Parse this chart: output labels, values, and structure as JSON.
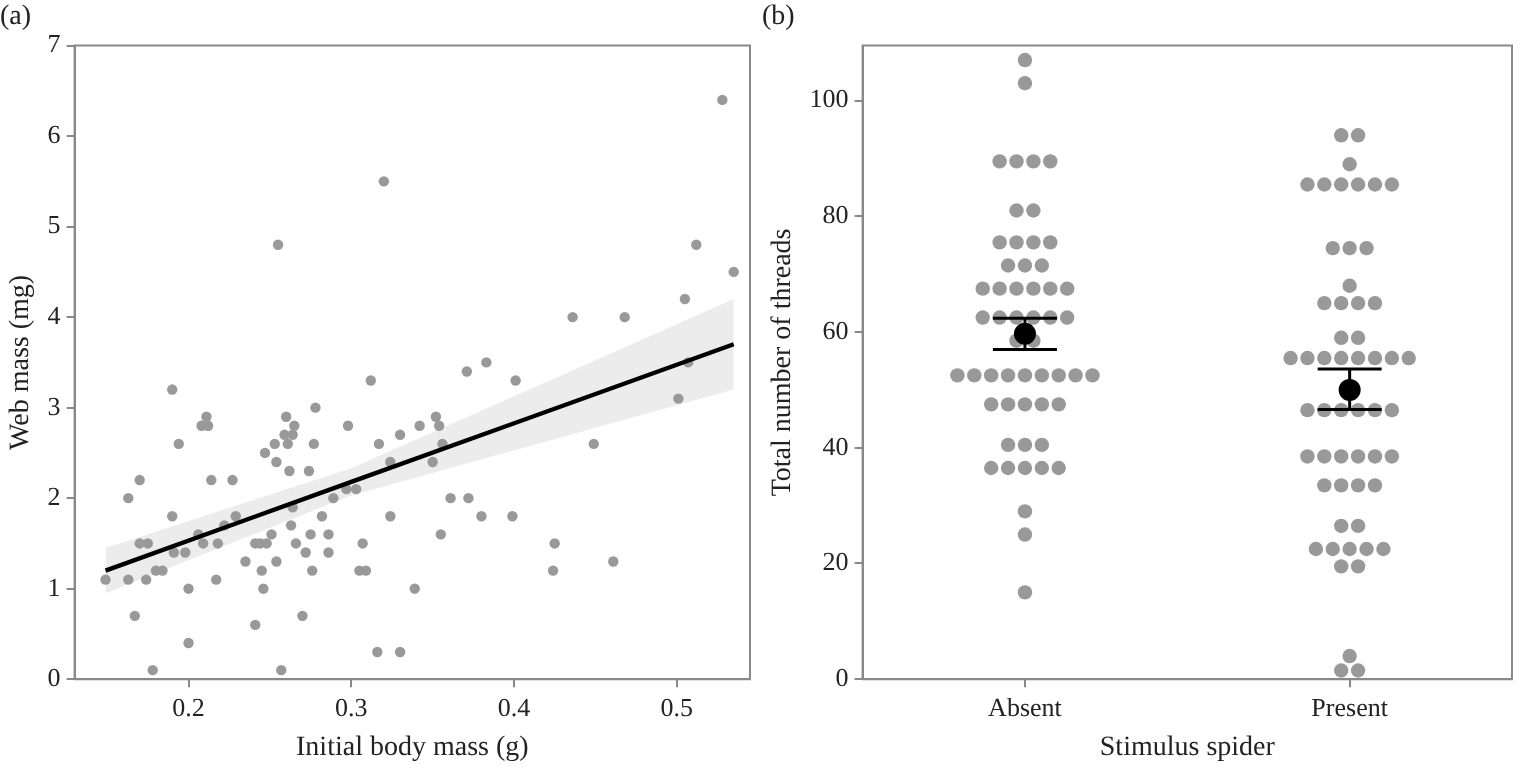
{
  "chart_data": [
    {
      "type": "scatter",
      "title": "(a)",
      "xlabel": "Initial body mass (g)",
      "ylabel": "Web mass (mg)",
      "xlim": [
        0.13,
        0.545
      ],
      "ylim": [
        0,
        7
      ],
      "xticks": [
        0.2,
        0.3,
        0.4,
        0.5
      ],
      "yticks": [
        0,
        1,
        2,
        3,
        4,
        5,
        6,
        7
      ],
      "grid": false,
      "legend": false,
      "marker": "circle",
      "series": [
        {
          "color": "#999999",
          "x": [
            0.149,
            0.163,
            0.163,
            0.167,
            0.17,
            0.17,
            0.175,
            0.174,
            0.178,
            0.18,
            0.184,
            0.19,
            0.19,
            0.191,
            0.194,
            0.198,
            0.2,
            0.2,
            0.206,
            0.209,
            0.208,
            0.211,
            0.212,
            0.214,
            0.217,
            0.218,
            0.222,
            0.227,
            0.229,
            0.235,
            0.241,
            0.241,
            0.244,
            0.245,
            0.246,
            0.247,
            0.248,
            0.251,
            0.253,
            0.254,
            0.254,
            0.257,
            0.259,
            0.26,
            0.261,
            0.262,
            0.263,
            0.264,
            0.264,
            0.265,
            0.266,
            0.27,
            0.272,
            0.274,
            0.275,
            0.276,
            0.277,
            0.278,
            0.282,
            0.286,
            0.286,
            0.289,
            0.298,
            0.297,
            0.303,
            0.305,
            0.307,
            0.309,
            0.312,
            0.316,
            0.317,
            0.324,
            0.324,
            0.33,
            0.33,
            0.339,
            0.35,
            0.342,
            0.352,
            0.354,
            0.355,
            0.356,
            0.361,
            0.371,
            0.372,
            0.38,
            0.383,
            0.399,
            0.401,
            0.424,
            0.425,
            0.449,
            0.461,
            0.501,
            0.507,
            0.255,
            0.32,
            0.528,
            0.512,
            0.535,
            0.505,
            0.436,
            0.468
          ],
          "values": [
            1.1,
            2.0,
            1.1,
            0.7,
            2.2,
            1.5,
            1.5,
            1.1,
            0.1,
            1.2,
            1.2,
            3.2,
            1.8,
            1.4,
            2.6,
            1.4,
            1.0,
            0.4,
            1.6,
            1.5,
            2.8,
            2.9,
            2.8,
            2.2,
            1.1,
            1.5,
            1.7,
            2.2,
            1.8,
            1.3,
            1.5,
            0.6,
            1.5,
            1.2,
            1.0,
            2.5,
            1.5,
            1.6,
            2.6,
            2.4,
            1.3,
            0.1,
            2.7,
            2.9,
            2.6,
            2.3,
            1.7,
            2.7,
            1.9,
            2.8,
            1.5,
            0.7,
            1.4,
            2.3,
            1.6,
            1.2,
            2.6,
            3.0,
            1.8,
            1.6,
            1.4,
            2.0,
            2.8,
            2.1,
            2.1,
            1.2,
            1.5,
            1.2,
            3.3,
            0.3,
            2.6,
            1.8,
            2.4,
            2.7,
            0.3,
            1.0,
            2.4,
            2.8,
            2.9,
            2.8,
            1.6,
            2.6,
            2.0,
            3.4,
            2.0,
            1.8,
            3.5,
            1.8,
            3.3,
            1.2,
            1.5,
            2.6,
            1.3,
            3.1,
            3.5,
            4.8,
            5.5,
            6.4,
            4.8,
            4.5,
            4.2,
            4.0,
            4.0
          ]
        },
        {
          "type": "line",
          "marker": "none",
          "color": "#000000",
          "x": [
            0.149,
            0.3,
            0.535
          ],
          "values": [
            1.2,
            2.18,
            3.7
          ],
          "lower": [
            0.95,
            2.03,
            3.2
          ],
          "upper": [
            1.45,
            2.33,
            4.2
          ]
        }
      ]
    },
    {
      "type": "scatter",
      "title": "(b)",
      "xlabel": "Stimulus spider",
      "ylabel": "Total number of threads",
      "categories": [
        "Absent",
        "Present"
      ],
      "ylim": [
        0,
        109.5
      ],
      "yticks": [
        0,
        20,
        40,
        60,
        80,
        100
      ],
      "grid": false,
      "legend": false,
      "marker": "circle",
      "series": [
        {
          "color": "#999999",
          "x": [
            "Absent",
            "Absent",
            "Absent",
            "Absent",
            "Absent",
            "Absent",
            "Absent",
            "Absent",
            "Absent",
            "Absent",
            "Absent",
            "Absent",
            "Absent",
            "Absent",
            "Absent",
            "Absent",
            "Absent",
            "Absent",
            "Absent",
            "Absent",
            "Absent",
            "Absent",
            "Absent",
            "Absent",
            "Absent",
            "Absent",
            "Absent",
            "Absent",
            "Absent",
            "Absent",
            "Absent",
            "Absent",
            "Absent",
            "Absent",
            "Absent",
            "Absent",
            "Absent",
            "Absent",
            "Absent",
            "Absent",
            "Absent",
            "Absent",
            "Absent",
            "Absent",
            "Absent",
            "Absent",
            "Absent",
            "Absent",
            "Absent",
            "Absent",
            "Absent",
            "Absent",
            "Absent",
            "Absent",
            "Present",
            "Present",
            "Present",
            "Present",
            "Present",
            "Present",
            "Present",
            "Present",
            "Present",
            "Present",
            "Present",
            "Present",
            "Present",
            "Present",
            "Present",
            "Present",
            "Present",
            "Present",
            "Present",
            "Present",
            "Present",
            "Present",
            "Present",
            "Present",
            "Present",
            "Present",
            "Present",
            "Present",
            "Present",
            "Present",
            "Present",
            "Present",
            "Present",
            "Present",
            "Present",
            "Present",
            "Present",
            "Present",
            "Present",
            "Present",
            "Present",
            "Present",
            "Present",
            "Present",
            "Present",
            "Present",
            "Present",
            "Present",
            "Present",
            "Present",
            "Present",
            "Present",
            "Present",
            "Present",
            "Present"
          ],
          "values": [
            107,
            103,
            89.5,
            89.5,
            89.5,
            89.5,
            81,
            81,
            75.5,
            75.5,
            75.5,
            75.5,
            71.5,
            71.5,
            71.5,
            67.5,
            67.5,
            67.5,
            67.5,
            67.5,
            67.5,
            62.5,
            62.5,
            62.5,
            62.5,
            62.5,
            62.5,
            58.5,
            58.5,
            52.5,
            52.5,
            52.5,
            52.5,
            52.5,
            52.5,
            52.5,
            52.5,
            52.5,
            47.5,
            47.5,
            47.5,
            47.5,
            47.5,
            40.5,
            40.5,
            40.5,
            36.5,
            36.5,
            36.5,
            36.5,
            36.5,
            29,
            25,
            15,
            94,
            94,
            89,
            85.5,
            85.5,
            85.5,
            85.5,
            85.5,
            85.5,
            74.5,
            74.5,
            74.5,
            68,
            65,
            65,
            65,
            65,
            59,
            59,
            55.5,
            55.5,
            55.5,
            55.5,
            55.5,
            55.5,
            55.5,
            55.5,
            46.5,
            46.5,
            46.5,
            46.5,
            46.5,
            46.5,
            38.5,
            38.5,
            38.5,
            38.5,
            38.5,
            38.5,
            33.5,
            33.5,
            33.5,
            33.5,
            26.5,
            26.5,
            22.5,
            22.5,
            22.5,
            22.5,
            22.5,
            19.5,
            19.5,
            4,
            1.5,
            1.5
          ]
        },
        {
          "color": "#000000",
          "x": [
            "Absent",
            "Present"
          ],
          "values": [
            59.7,
            50.0
          ],
          "errors": [
            [
              57.0,
              62.4
            ],
            [
              46.6,
              53.6
            ]
          ]
        }
      ]
    }
  ]
}
